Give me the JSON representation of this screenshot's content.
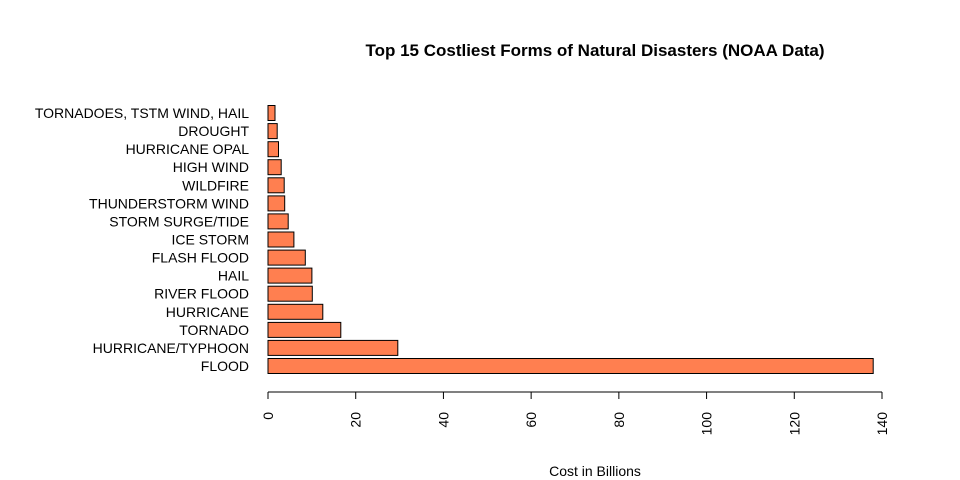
{
  "chart_data": {
    "type": "bar",
    "orientation": "horizontal",
    "title": "Top 15 Costliest Forms of Natural Disasters (NOAA Data)",
    "xlabel": "Cost in Billions",
    "ylabel": "",
    "categories": [
      "FLOOD",
      "HURRICANE/TYPHOON",
      "TORNADO",
      "HURRICANE",
      "RIVER FLOOD",
      "HAIL",
      "FLASH FLOOD",
      "ICE STORM",
      "STORM SURGE/TIDE",
      "THUNDERSTORM WIND",
      "WILDFIRE",
      "HIGH WIND",
      "HURRICANE OPAL",
      "DROUGHT",
      "TORNADOES, TSTM WIND, HAIL"
    ],
    "values": [
      138.0,
      29.6,
      16.6,
      12.5,
      10.1,
      10.0,
      8.5,
      5.9,
      4.6,
      3.8,
      3.7,
      3.0,
      2.4,
      2.1,
      1.6
    ],
    "xlim": [
      0,
      140
    ],
    "xticks": [
      0,
      20,
      40,
      60,
      80,
      100,
      120,
      140
    ],
    "bar_color": "#ff7f50",
    "grid": false,
    "legend": "none"
  }
}
